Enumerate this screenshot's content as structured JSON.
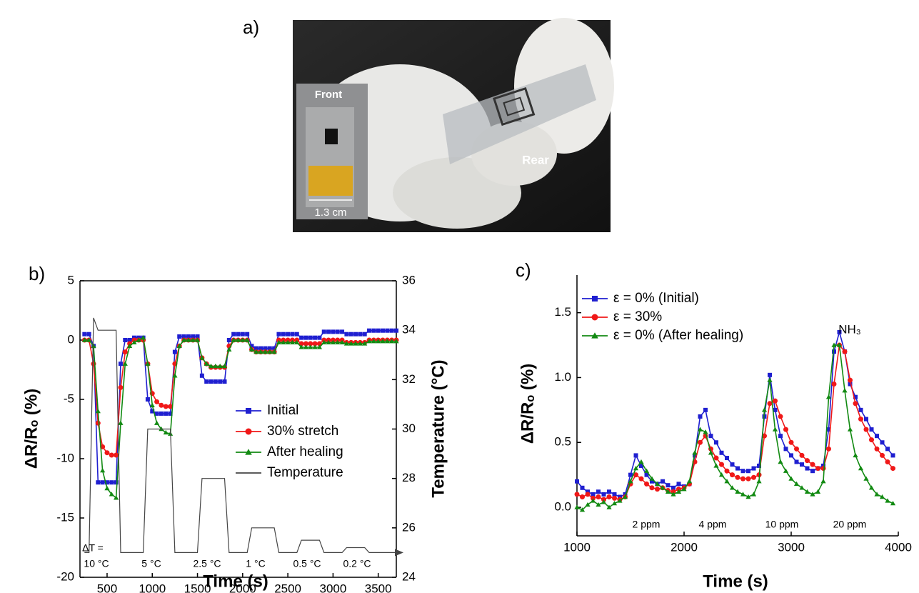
{
  "photo": {
    "label": "a)",
    "front": "Front",
    "rear": "Rear",
    "scale": "1.3 cm"
  },
  "chart_data": [
    {
      "type": "line",
      "panel_label": "b)",
      "xlabel": "Time (s)",
      "ylabel": "ΔR/Rₒ (%)",
      "y2label": "Temperature (°C)",
      "xlim": [
        200,
        3700
      ],
      "xticks": [
        500,
        1000,
        1500,
        2000,
        2500,
        3000,
        3500
      ],
      "ylim": [
        -20,
        5
      ],
      "yticks": [
        -20,
        -15,
        -10,
        -5,
        0,
        5
      ],
      "y2lim": [
        24,
        36
      ],
      "y2ticks": [
        24,
        26,
        28,
        30,
        32,
        34,
        36
      ],
      "legend": "lower right",
      "grid": false,
      "x": [
        250,
        300,
        350,
        400,
        450,
        500,
        550,
        600,
        650,
        700,
        750,
        800,
        850,
        900,
        950,
        1000,
        1050,
        1100,
        1150,
        1200,
        1250,
        1300,
        1350,
        1400,
        1450,
        1500,
        1550,
        1600,
        1650,
        1700,
        1750,
        1800,
        1850,
        1900,
        1950,
        2000,
        2050,
        2100,
        2150,
        2200,
        2250,
        2300,
        2350,
        2400,
        2450,
        2500,
        2550,
        2600,
        2650,
        2700,
        2750,
        2800,
        2850,
        2900,
        2950,
        3000,
        3050,
        3100,
        3150,
        3200,
        3250,
        3300,
        3350,
        3400,
        3450,
        3500,
        3550,
        3600,
        3650,
        3700
      ],
      "series": [
        {
          "name": "Initial",
          "color": "#1f1fd0",
          "marker": "square",
          "values": [
            0.5,
            0.5,
            -0.5,
            -12,
            -12,
            -12,
            -12,
            -12,
            -2,
            0,
            0,
            0.2,
            0.2,
            0.2,
            -5,
            -6,
            -6.2,
            -6.2,
            -6.2,
            -6.2,
            -1,
            0.3,
            0.3,
            0.3,
            0.3,
            0.3,
            -3,
            -3.5,
            -3.5,
            -3.5,
            -3.5,
            -3.5,
            0,
            0.5,
            0.5,
            0.5,
            0.5,
            -0.5,
            -0.7,
            -0.7,
            -0.7,
            -0.7,
            -0.7,
            0.5,
            0.5,
            0.5,
            0.5,
            0.5,
            0.2,
            0.2,
            0.2,
            0.2,
            0.2,
            0.7,
            0.7,
            0.7,
            0.7,
            0.7,
            0.5,
            0.5,
            0.5,
            0.5,
            0.5,
            0.8,
            0.8,
            0.8,
            0.8,
            0.8,
            0.8,
            0.8
          ]
        },
        {
          "name": "30% stretch",
          "color": "#f01818",
          "marker": "circle",
          "values": [
            0,
            0,
            -2,
            -7,
            -9,
            -9.5,
            -9.7,
            -9.7,
            -4,
            -1,
            -0.3,
            0,
            0,
            0,
            -2,
            -4.5,
            -5.2,
            -5.5,
            -5.6,
            -5.6,
            -2,
            -0.5,
            0,
            0,
            0,
            0,
            -1.5,
            -2,
            -2.3,
            -2.3,
            -2.3,
            -2.3,
            -0.5,
            0,
            0,
            0,
            0,
            -0.8,
            -1,
            -1,
            -1,
            -1,
            -1,
            0,
            0,
            0,
            0,
            0,
            -0.3,
            -0.3,
            -0.3,
            -0.3,
            -0.3,
            0,
            0,
            0,
            0,
            0,
            -0.2,
            -0.2,
            -0.2,
            -0.2,
            -0.2,
            0,
            0,
            0,
            0,
            0,
            0,
            0
          ]
        },
        {
          "name": "After healing",
          "color": "#128a12",
          "marker": "triangle",
          "values": [
            0,
            0,
            -0.5,
            -6,
            -11,
            -12.5,
            -13,
            -13.3,
            -7,
            -2,
            -0.5,
            -0.2,
            0,
            0.2,
            -2,
            -5.5,
            -7,
            -7.5,
            -7.8,
            -7.9,
            -3,
            -0.5,
            0,
            0,
            0,
            0,
            -1.5,
            -2,
            -2.2,
            -2.2,
            -2.2,
            -2.2,
            -0.8,
            0,
            0,
            0,
            0,
            -0.8,
            -1,
            -1,
            -1,
            -1,
            -1,
            -0.2,
            -0.2,
            -0.2,
            -0.2,
            -0.2,
            -0.6,
            -0.6,
            -0.6,
            -0.6,
            -0.6,
            -0.2,
            -0.2,
            -0.2,
            -0.2,
            -0.2,
            -0.3,
            -0.3,
            -0.3,
            -0.3,
            -0.3,
            -0.1,
            -0.1,
            -0.1,
            -0.1,
            -0.1,
            -0.1,
            -0.1
          ]
        },
        {
          "name": "Temperature",
          "color": "#444444",
          "axis": "y2",
          "values": [
            25,
            25,
            34.5,
            34,
            34,
            34,
            34,
            34,
            25,
            25,
            25,
            25,
            25,
            25,
            30,
            30,
            30,
            30,
            30,
            30,
            25,
            25,
            25,
            25,
            25,
            25,
            28,
            28,
            28,
            28,
            28,
            28,
            25,
            25,
            25,
            25,
            25,
            26,
            26,
            26,
            26,
            26,
            26,
            25,
            25,
            25,
            25,
            25,
            25.5,
            25.5,
            25.5,
            25.5,
            25.5,
            25,
            25,
            25,
            25,
            25,
            25.2,
            25.2,
            25.2,
            25.2,
            25.2,
            25,
            25,
            25,
            25,
            25,
            25,
            25
          ]
        }
      ],
      "annotations": [
        "ΔT =",
        "10 °C",
        "5 °C",
        "2.5 °C",
        "1 °C",
        "0.5 °C",
        "0.2 °C"
      ]
    },
    {
      "type": "line",
      "panel_label": "c)",
      "xlabel": "Time (s)",
      "ylabel": "ΔR/Rₒ (%)",
      "xlim": [
        1000,
        4000
      ],
      "xticks": [
        1000,
        2000,
        3000,
        4000
      ],
      "ylim": [
        -0.22,
        1.79
      ],
      "yticks": [
        {
          "value": 0,
          "label": "0.0"
        },
        0.5,
        {
          "value": 1,
          "label": "1.0"
        },
        1.5
      ],
      "legend": "upper left",
      "grid": false,
      "x": [
        1000,
        1050,
        1100,
        1150,
        1200,
        1250,
        1300,
        1350,
        1400,
        1450,
        1500,
        1550,
        1600,
        1650,
        1700,
        1750,
        1800,
        1850,
        1900,
        1950,
        2000,
        2050,
        2100,
        2150,
        2200,
        2250,
        2300,
        2350,
        2400,
        2450,
        2500,
        2550,
        2600,
        2650,
        2700,
        2750,
        2800,
        2850,
        2900,
        2950,
        3000,
        3050,
        3100,
        3150,
        3200,
        3250,
        3300,
        3350,
        3400,
        3450,
        3500,
        3550,
        3600,
        3650,
        3700,
        3750,
        3800,
        3850,
        3900,
        3950
      ],
      "series": [
        {
          "name": "ε = 0% (Initial)",
          "color": "#1f1fd0",
          "marker": "square",
          "values": [
            0.2,
            0.15,
            0.12,
            0.1,
            0.12,
            0.1,
            0.12,
            0.1,
            0.08,
            0.1,
            0.25,
            0.4,
            0.32,
            0.25,
            0.2,
            0.18,
            0.2,
            0.17,
            0.15,
            0.18,
            0.16,
            0.18,
            0.4,
            0.7,
            0.75,
            0.55,
            0.5,
            0.42,
            0.38,
            0.33,
            0.3,
            0.28,
            0.28,
            0.3,
            0.32,
            0.7,
            1.02,
            0.75,
            0.55,
            0.45,
            0.4,
            0.35,
            0.33,
            0.3,
            0.28,
            0.3,
            0.32,
            0.6,
            1.2,
            1.35,
            1.2,
            0.95,
            0.85,
            0.75,
            0.68,
            0.6,
            0.55,
            0.5,
            0.45,
            0.4
          ]
        },
        {
          "name": "ε = 30%",
          "color": "#f01818",
          "marker": "circle",
          "values": [
            0.1,
            0.08,
            0.1,
            0.07,
            0.08,
            0.06,
            0.08,
            0.07,
            0.06,
            0.08,
            0.18,
            0.25,
            0.22,
            0.18,
            0.15,
            0.14,
            0.15,
            0.13,
            0.12,
            0.14,
            0.15,
            0.18,
            0.35,
            0.5,
            0.55,
            0.45,
            0.38,
            0.33,
            0.28,
            0.25,
            0.23,
            0.22,
            0.22,
            0.23,
            0.25,
            0.55,
            0.8,
            0.82,
            0.7,
            0.6,
            0.5,
            0.45,
            0.4,
            0.36,
            0.33,
            0.3,
            0.3,
            0.45,
            0.95,
            1.25,
            1.2,
            0.98,
            0.8,
            0.68,
            0.6,
            0.52,
            0.45,
            0.4,
            0.35,
            0.3
          ]
        },
        {
          "name": "ε = 0% (After healing)",
          "color": "#128a12",
          "marker": "triangle",
          "values": [
            0,
            -0.02,
            0.02,
            0.05,
            0.02,
            0.04,
            0,
            0.03,
            0.05,
            0.08,
            0.2,
            0.3,
            0.35,
            0.28,
            0.22,
            0.18,
            0.15,
            0.12,
            0.1,
            0.12,
            0.14,
            0.2,
            0.42,
            0.6,
            0.58,
            0.42,
            0.32,
            0.25,
            0.2,
            0.15,
            0.12,
            0.1,
            0.08,
            0.1,
            0.2,
            0.75,
            0.98,
            0.6,
            0.35,
            0.28,
            0.22,
            0.18,
            0.15,
            0.12,
            0.1,
            0.12,
            0.2,
            0.85,
            1.25,
            1.25,
            0.9,
            0.6,
            0.4,
            0.3,
            0.22,
            0.15,
            0.1,
            0.08,
            0.05,
            0.03
          ]
        }
      ],
      "annotations": [
        "2 ppm",
        "4 ppm",
        "10 ppm",
        "20 ppm",
        "NH₃"
      ]
    }
  ]
}
